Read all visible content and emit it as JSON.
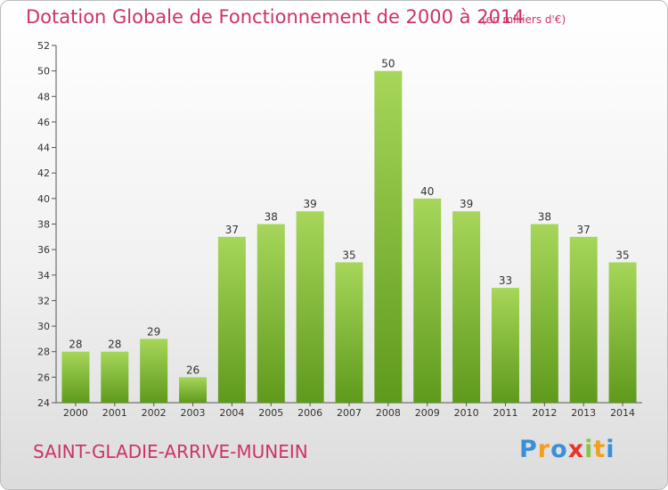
{
  "header": {
    "title": "Dotation Globale de Fonctionnement de 2000 à 2014",
    "unit": "(en milliers d'€)"
  },
  "footer": {
    "commune": "SAINT-GLADIE-ARRIVE-MUNEIN",
    "logo_letters": [
      {
        "ch": "P",
        "color": "#3a8fd8"
      },
      {
        "ch": "r",
        "color": "#f0a020"
      },
      {
        "ch": "o",
        "color": "#3a8fd8"
      },
      {
        "ch": "x",
        "color": "#e8342b"
      },
      {
        "ch": "i",
        "color": "#8bc34a"
      },
      {
        "ch": "t",
        "color": "#f0a020"
      },
      {
        "ch": "i",
        "color": "#3a8fd8"
      }
    ]
  },
  "chart_data": {
    "type": "bar",
    "categories": [
      "2000",
      "2001",
      "2002",
      "2003",
      "2004",
      "2005",
      "2006",
      "2007",
      "2008",
      "2009",
      "2010",
      "2011",
      "2012",
      "2013",
      "2014"
    ],
    "values": [
      28,
      28,
      29,
      26,
      37,
      38,
      39,
      35,
      50,
      40,
      39,
      33,
      38,
      37,
      35
    ],
    "ylim": [
      24,
      52
    ],
    "yticks": [
      24,
      26,
      28,
      30,
      32,
      34,
      36,
      38,
      40,
      42,
      44,
      46,
      48,
      50,
      52
    ],
    "grid": false,
    "bar_color_top": "#a6d65a",
    "bar_color_bottom": "#5f9a1c",
    "label_color": "#333333",
    "axis_color": "#555555"
  }
}
